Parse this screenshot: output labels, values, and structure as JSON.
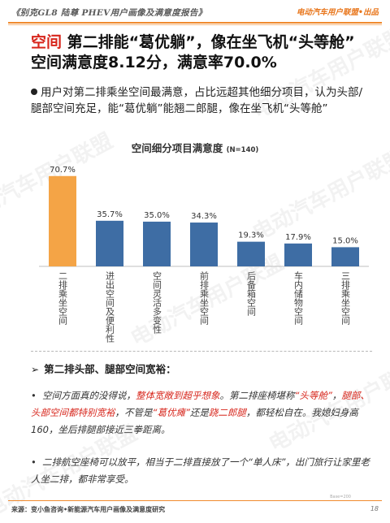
{
  "header": {
    "report_title": "《别克GL8 陆尊 PHEV用户画像及满意度报告》",
    "brand_tag": "电动汽车用户联盟•出品"
  },
  "title": {
    "highlight": "空间",
    "line1": " 第二排能“葛优躺”，像在坐飞机“头等舱”",
    "line2": "空间满意度8.12分，满意率70.0%"
  },
  "intro": "用户对第二排乘坐空间最满意，占比远超其他细分项目，认为头部/腿部空间充足，能“葛优躺”能翘二郎腿，像在坐飞机“头等舱”",
  "chart_data": {
    "type": "bar",
    "title": "空间细分项目满意度",
    "title_note": "(N=140)",
    "categories": [
      "二排乘坐空间",
      "进出空间及便利性",
      "空间灵活多变性",
      "前排乘坐空间",
      "后备箱空间",
      "车内储物空间",
      "三排乘坐空间"
    ],
    "values": [
      70.7,
      35.7,
      35.0,
      34.3,
      19.3,
      17.9,
      15.0
    ],
    "value_labels": [
      "70.7%",
      "35.7%",
      "35.0%",
      "34.3%",
      "19.3%",
      "17.9%",
      "15.0%"
    ],
    "ylim": [
      0,
      75
    ],
    "highlight_index": 0,
    "colors": {
      "highlight": "#f4a446",
      "default": "#3e6da4"
    }
  },
  "section": {
    "heading_arrow": "➢",
    "heading": "第二排头部、腿部空间宽裕：",
    "p1": {
      "bullet": "•",
      "t1": "空间方面真的没得说，",
      "r1": "整体宽敞到超乎想象",
      "t2": "。第二排座椅堪称",
      "r2": "“头等舱”",
      "t3": "，",
      "r3": "腿部、头部空间都特别宽裕",
      "t4": "，不管是",
      "r4": "“葛优瘫”",
      "t5": "还是",
      "r5": "跷二郎腿",
      "t6": "，都轻松自在。我媳妇身高160，坐后排腿部接近三拳距离。"
    },
    "p2": {
      "bullet": "•",
      "text": "二排航空座椅可以放平，相当于二排直接放了一个“单人床”，出门旅行让家里老人坐二排，都非常享受。"
    }
  },
  "footer": {
    "source": "来源：变小鱼咨询•新能源汽车用户画像及满意度研究",
    "mark": "Base=200",
    "page": "18"
  },
  "watermark": "电动汽车用户联盟"
}
